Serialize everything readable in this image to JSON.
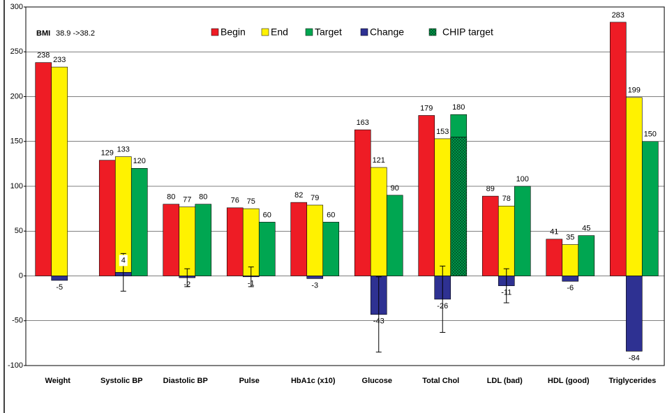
{
  "chart_data": {
    "type": "bar",
    "annotation": {
      "label": "BMI",
      "text": "38.9 ->38.2"
    },
    "categories": [
      "Weight",
      "Systolic BP",
      "Diastolic BP",
      "Pulse",
      "HbA1c (x10)",
      "Glucose",
      "Total Chol",
      "LDL (bad)",
      "HDL (good)",
      "Triglycerides"
    ],
    "series": [
      {
        "name": "Begin",
        "color": "#ee1c25",
        "values": [
          238,
          129,
          80,
          76,
          82,
          163,
          179,
          89,
          41,
          283
        ]
      },
      {
        "name": "End",
        "color": "#fff200",
        "values": [
          233,
          133,
          77,
          75,
          79,
          121,
          153,
          78,
          35,
          199
        ]
      },
      {
        "name": "Target",
        "color": "#00a651",
        "values": [
          null,
          120,
          80,
          60,
          60,
          90,
          180,
          100,
          45,
          150
        ]
      },
      {
        "name": "Change",
        "color": "#2e3192",
        "values": [
          -5,
          4,
          -2,
          -1,
          -3,
          -43,
          -26,
          -11,
          -6,
          -84
        ],
        "errors": [
          null,
          21,
          10,
          11,
          null,
          42,
          37,
          19,
          null,
          null
        ]
      },
      {
        "name": "CHIP target",
        "color": "#00a651",
        "pattern": "crosshatch",
        "values": [
          null,
          null,
          null,
          null,
          null,
          null,
          155,
          null,
          null,
          null
        ]
      }
    ],
    "ylim": [
      -100,
      300
    ],
    "yticks": [
      -100,
      -50,
      0,
      50,
      100,
      150,
      200,
      250,
      300
    ],
    "grid": true
  }
}
